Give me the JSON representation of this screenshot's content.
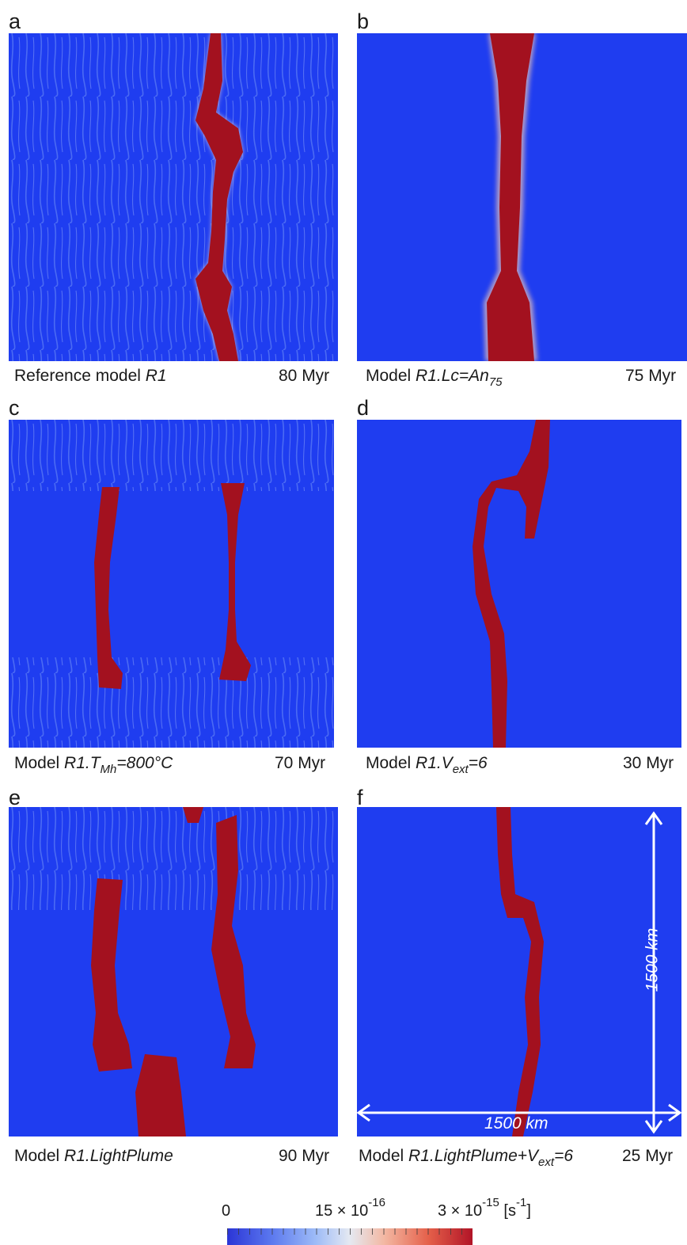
{
  "panels": [
    {
      "letter": "a",
      "caption_plain": "Reference model ",
      "caption_italic": "R1",
      "caption_sub": "",
      "caption_tail": "",
      "time": "80 Myr"
    },
    {
      "letter": "b",
      "caption_plain": "Model ",
      "caption_italic": "R1.Lc=An",
      "caption_sub": "75",
      "caption_tail": "",
      "time": "75 Myr"
    },
    {
      "letter": "c",
      "caption_plain": "Model ",
      "caption_italic": "R1.T",
      "caption_sub": "Mh",
      "caption_tail": "=800°C",
      "time": "70 Myr"
    },
    {
      "letter": "d",
      "caption_plain": "Model ",
      "caption_italic": "R1.V",
      "caption_sub": "ext",
      "caption_tail": "=6",
      "time": "30 Myr"
    },
    {
      "letter": "e",
      "caption_plain": "Model ",
      "caption_italic": "R1.LightPlume",
      "caption_sub": "",
      "caption_tail": "",
      "time": "90 Myr"
    },
    {
      "letter": "f",
      "caption_plain": "Model ",
      "caption_italic": "R1.LightPlume+V",
      "caption_sub": "ext",
      "caption_tail": "=6",
      "time": "25 Myr"
    }
  ],
  "scale": {
    "vertical_label": "1500 km",
    "horizontal_label": "1500 km"
  },
  "colorbar": {
    "min_label": "0",
    "mid_mantissa": "15 × 10",
    "mid_exp": "-16",
    "max_mantissa": "3 × 10",
    "max_exp": "-15",
    "unit_open": " [s",
    "unit_exp": "-1",
    "unit_close": "]",
    "colors": [
      "#2b35d6",
      "#9dbbf7",
      "#e5e9f2",
      "#e5604a",
      "#b11427"
    ]
  }
}
